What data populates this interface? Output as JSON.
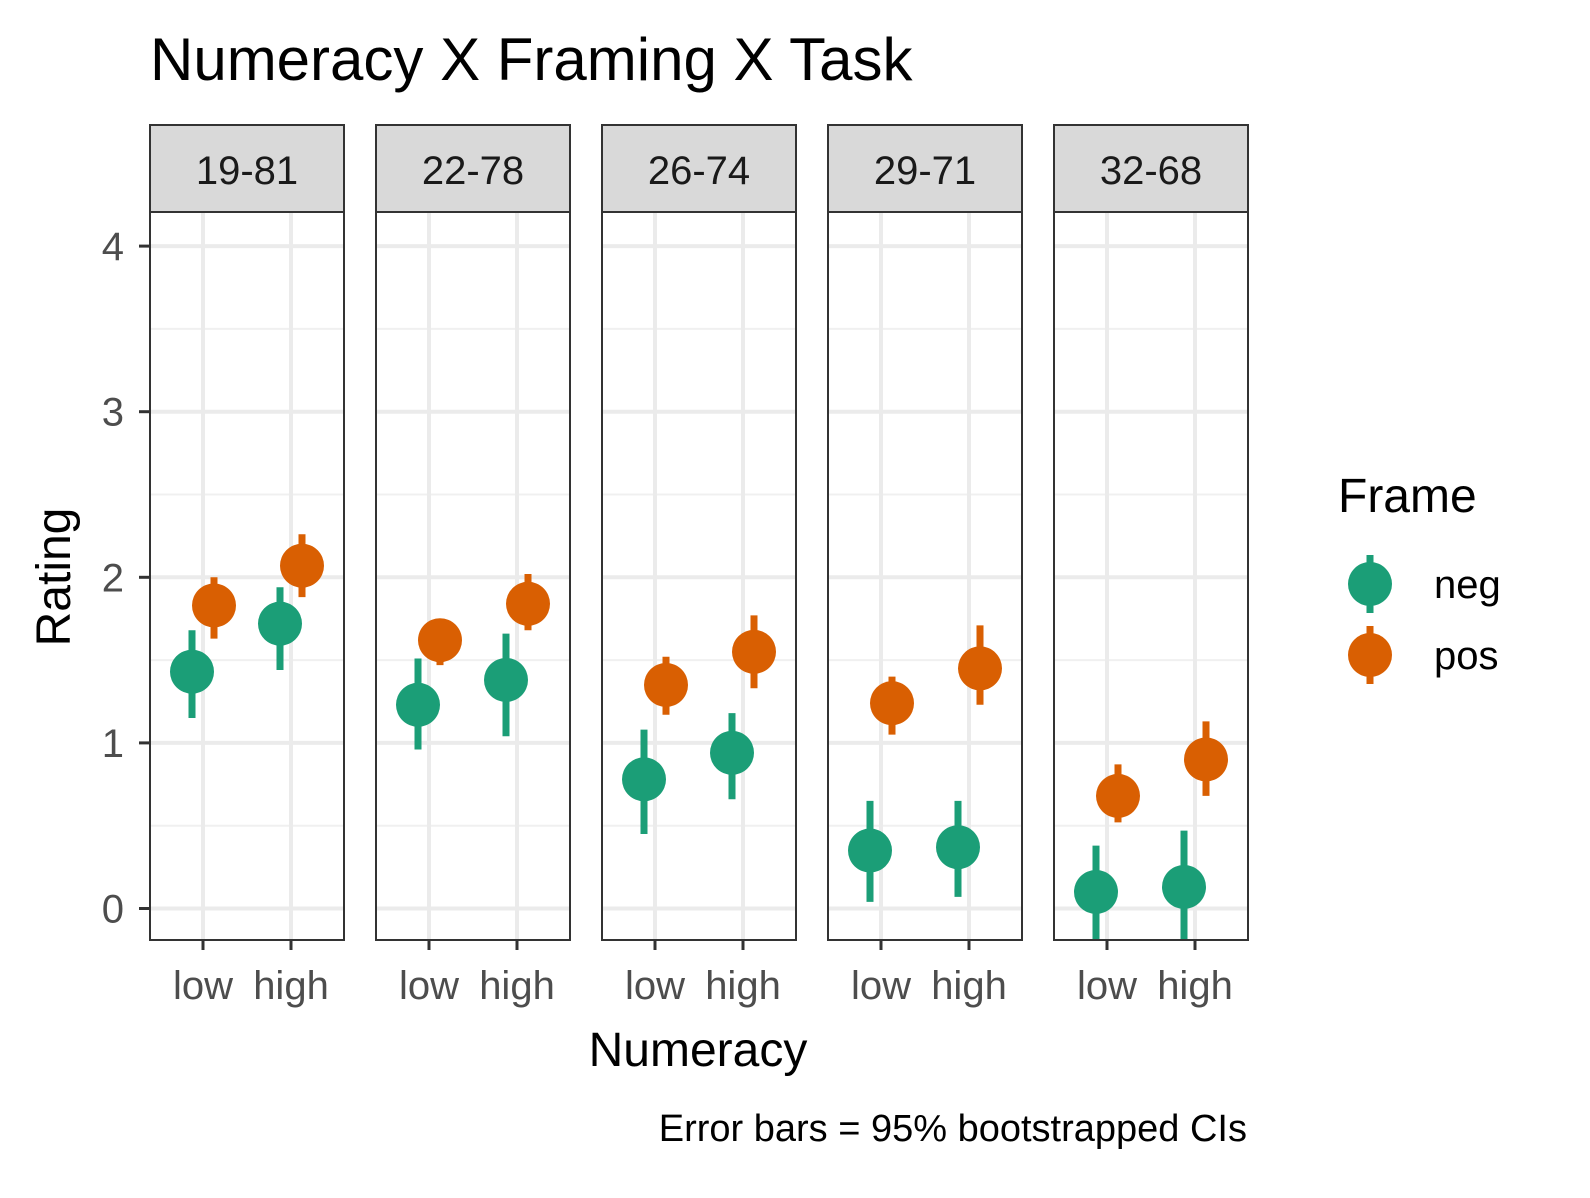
{
  "chart_data": {
    "type": "scatter",
    "title": "Numeracy X Framing X Task",
    "xlabel": "Numeracy",
    "ylabel": "Rating",
    "caption": "Error bars = 95% bootstrapped CIs",
    "ylim": [
      -0.2,
      4.2
    ],
    "yticks": [
      "0",
      "1",
      "2",
      "3",
      "4"
    ],
    "categories": [
      "low",
      "high"
    ],
    "grid": true,
    "legend": {
      "title": "Frame",
      "position": "right",
      "entries": [
        {
          "name": "neg",
          "color": "#1B9E77"
        },
        {
          "name": "pos",
          "color": "#D95F02"
        }
      ]
    },
    "panels": [
      {
        "label": "19-81",
        "series": [
          {
            "name": "neg",
            "mean": [
              1.43,
              1.72
            ],
            "lower": [
              1.15,
              1.44
            ],
            "upper": [
              1.68,
              1.94
            ]
          },
          {
            "name": "pos",
            "mean": [
              1.83,
              2.07
            ],
            "lower": [
              1.63,
              1.88
            ],
            "upper": [
              2.0,
              2.26
            ]
          }
        ]
      },
      {
        "label": "22-78",
        "series": [
          {
            "name": "neg",
            "mean": [
              1.23,
              1.38
            ],
            "lower": [
              0.96,
              1.04
            ],
            "upper": [
              1.51,
              1.66
            ]
          },
          {
            "name": "pos",
            "mean": [
              1.62,
              1.84
            ],
            "lower": [
              1.47,
              1.68
            ],
            "upper": [
              1.74,
              2.02
            ]
          }
        ]
      },
      {
        "label": "26-74",
        "series": [
          {
            "name": "neg",
            "mean": [
              0.78,
              0.94
            ],
            "lower": [
              0.45,
              0.66
            ],
            "upper": [
              1.08,
              1.18
            ]
          },
          {
            "name": "pos",
            "mean": [
              1.35,
              1.55
            ],
            "lower": [
              1.17,
              1.33
            ],
            "upper": [
              1.52,
              1.77
            ]
          }
        ]
      },
      {
        "label": "29-71",
        "series": [
          {
            "name": "neg",
            "mean": [
              0.35,
              0.37
            ],
            "lower": [
              0.04,
              0.07
            ],
            "upper": [
              0.65,
              0.65
            ]
          },
          {
            "name": "pos",
            "mean": [
              1.24,
              1.45
            ],
            "lower": [
              1.05,
              1.23
            ],
            "upper": [
              1.4,
              1.71
            ]
          }
        ]
      },
      {
        "label": "32-68",
        "series": [
          {
            "name": "neg",
            "mean": [
              0.1,
              0.13
            ],
            "lower": [
              -0.2,
              -0.2
            ],
            "upper": [
              0.38,
              0.47
            ]
          },
          {
            "name": "pos",
            "mean": [
              0.68,
              0.9
            ],
            "lower": [
              0.52,
              0.68
            ],
            "upper": [
              0.87,
              1.13
            ]
          }
        ]
      }
    ]
  }
}
